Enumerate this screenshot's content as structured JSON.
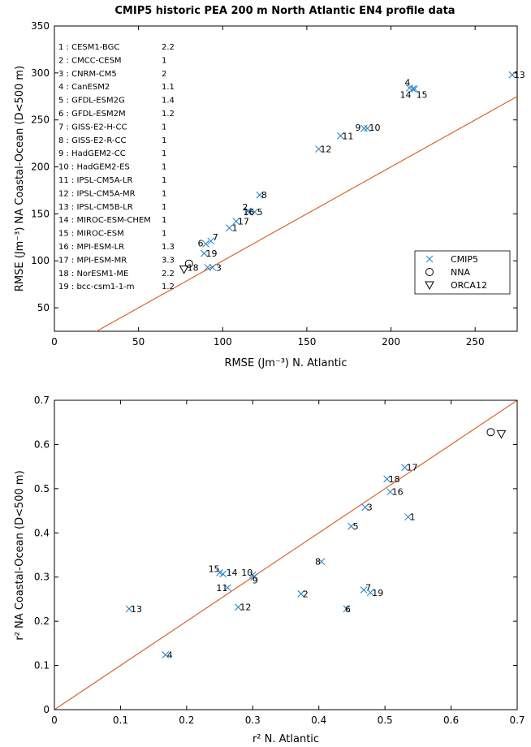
{
  "title": "CMIP5 historic  PEA 200 m North Atlantic EN4 profile data",
  "colors": {
    "model_marker": "#1f7fc4",
    "one_to_one_line": "#e0642a",
    "axis": "#000000"
  },
  "chart_data": [
    {
      "type": "scatter",
      "xlabel": "RMSE (Jm⁻³) N. Atlantic",
      "ylabel": "RMSE (Jm⁻³) NA Coastal-Ocean (D<500 m)",
      "xlim": [
        0,
        275
      ],
      "ylim": [
        25,
        350
      ],
      "xticks": [
        "0",
        "50",
        "100",
        "150",
        "200",
        "250"
      ],
      "yticks": [
        "50",
        "100",
        "150",
        "200",
        "250",
        "300",
        "350"
      ],
      "one_to_one_line": true,
      "legend_position": "right-middle",
      "legend": [
        "CMIP5",
        "NNA",
        "ORCA12"
      ],
      "model_list": [
        {
          "label": "1 : CESM1-BGC",
          "value": "2.2"
        },
        {
          "label": "2 : CMCC-CESM",
          "value": "1"
        },
        {
          "label": "3 : CNRM-CM5",
          "value": "2"
        },
        {
          "label": "4 : CanESM2",
          "value": "1.1"
        },
        {
          "label": "5 : GFDL-ESM2G",
          "value": "1.4"
        },
        {
          "label": "6 : GFDL-ESM2M",
          "value": "1.2"
        },
        {
          "label": "7 : GISS-E2-H-CC",
          "value": "1"
        },
        {
          "label": "8 : GISS-E2-R-CC",
          "value": "1"
        },
        {
          "label": "9 : HadGEM2-CC",
          "value": "1"
        },
        {
          "label": "10 : HadGEM2-ES",
          "value": "1"
        },
        {
          "label": "11 : IPSL-CM5A-LR",
          "value": "1"
        },
        {
          "label": "12 : IPSL-CM5A-MR",
          "value": "1"
        },
        {
          "label": "13 : IPSL-CM5B-LR",
          "value": "1"
        },
        {
          "label": "14 : MIROC-ESM-CHEM",
          "value": "1"
        },
        {
          "label": "15 : MIROC-ESM",
          "value": "1"
        },
        {
          "label": "16 : MPI-ESM-LR",
          "value": "1.3"
        },
        {
          "label": "17 : MPI-ESM-MR",
          "value": "3.3"
        },
        {
          "label": "18 : NorESM1-ME",
          "value": "2.2"
        },
        {
          "label": "19 : bcc-csm1-1-m",
          "value": "1.2"
        }
      ],
      "points": [
        {
          "id": "1",
          "x": 104,
          "y": 135
        },
        {
          "id": "2",
          "x": 115,
          "y": 153
        },
        {
          "id": "3",
          "x": 94,
          "y": 93
        },
        {
          "id": "4",
          "x": 211,
          "y": 284
        },
        {
          "id": "5",
          "x": 119,
          "y": 152
        },
        {
          "id": "6",
          "x": 90,
          "y": 118
        },
        {
          "id": "7",
          "x": 93,
          "y": 121
        },
        {
          "id": "8",
          "x": 122,
          "y": 170
        },
        {
          "id": "9",
          "x": 184,
          "y": 241
        },
        {
          "id": "10",
          "x": 186,
          "y": 241
        },
        {
          "id": "11",
          "x": 170,
          "y": 233
        },
        {
          "id": "12",
          "x": 157,
          "y": 219
        },
        {
          "id": "13",
          "x": 272,
          "y": 298
        },
        {
          "id": "14",
          "x": 213,
          "y": 283
        },
        {
          "id": "15",
          "x": 214,
          "y": 283
        },
        {
          "id": "16",
          "x": 116,
          "y": 152
        },
        {
          "id": "17",
          "x": 108,
          "y": 142
        },
        {
          "id": "18",
          "x": 91,
          "y": 93
        },
        {
          "id": "19",
          "x": 89,
          "y": 108
        }
      ],
      "nna": {
        "x": 80,
        "y": 97
      },
      "orca12": {
        "x": 77,
        "y": 91
      }
    },
    {
      "type": "scatter",
      "xlabel": "r² N. Atlantic",
      "ylabel": "r² NA Coastal-Ocean (D<500 m)",
      "xlim": [
        0,
        0.7
      ],
      "ylim": [
        0,
        0.7
      ],
      "xticks": [
        "0",
        "0.1",
        "0.2",
        "0.3",
        "0.4",
        "0.5",
        "0.6",
        "0.7"
      ],
      "yticks": [
        "0",
        "0.1",
        "0.2",
        "0.3",
        "0.4",
        "0.5",
        "0.6",
        "0.7"
      ],
      "one_to_one_line": true,
      "points": [
        {
          "id": "1",
          "x": 0.535,
          "y": 0.436
        },
        {
          "id": "2",
          "x": 0.373,
          "y": 0.262
        },
        {
          "id": "3",
          "x": 0.47,
          "y": 0.458
        },
        {
          "id": "4",
          "x": 0.168,
          "y": 0.124
        },
        {
          "id": "5",
          "x": 0.449,
          "y": 0.415
        },
        {
          "id": "6",
          "x": 0.442,
          "y": 0.228
        },
        {
          "id": "7",
          "x": 0.468,
          "y": 0.271
        },
        {
          "id": "8",
          "x": 0.404,
          "y": 0.335
        },
        {
          "id": "9",
          "x": 0.302,
          "y": 0.3
        },
        {
          "id": "10",
          "x": 0.3,
          "y": 0.305
        },
        {
          "id": "11",
          "x": 0.262,
          "y": 0.276
        },
        {
          "id": "12",
          "x": 0.278,
          "y": 0.232
        },
        {
          "id": "13",
          "x": 0.113,
          "y": 0.228
        },
        {
          "id": "14",
          "x": 0.255,
          "y": 0.307
        },
        {
          "id": "15",
          "x": 0.25,
          "y": 0.31
        },
        {
          "id": "16",
          "x": 0.508,
          "y": 0.493
        },
        {
          "id": "17",
          "x": 0.53,
          "y": 0.548
        },
        {
          "id": "18",
          "x": 0.503,
          "y": 0.522
        },
        {
          "id": "19",
          "x": 0.478,
          "y": 0.265
        }
      ],
      "nna": {
        "x": 0.66,
        "y": 0.628
      },
      "orca12": {
        "x": 0.676,
        "y": 0.624
      }
    }
  ]
}
